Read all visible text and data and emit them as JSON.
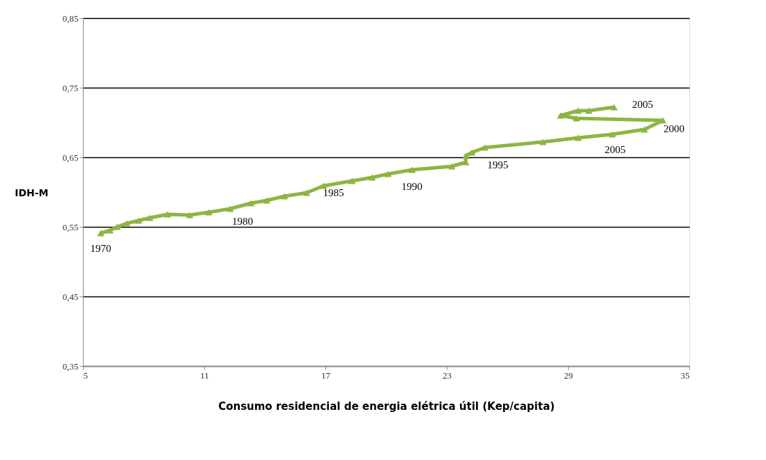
{
  "chart_data": {
    "type": "line",
    "xlabel": "Consumo residencial de energia elétrica útil (Kep/capita)",
    "ylabel": "IDH-M",
    "x": [
      5.88,
      6.34,
      6.69,
      7.16,
      7.75,
      8.31,
      9.19,
      10.28,
      11.22,
      12.28,
      13.31,
      14.09,
      14.97,
      16.06,
      16.91,
      18.31,
      19.31,
      20.09,
      21.28,
      23.25,
      23.94,
      23.94,
      24.25,
      24.88,
      27.75,
      29.5,
      31.19,
      32.78,
      33.69,
      29.41,
      28.63,
      29.5,
      30.03,
      31.28
    ],
    "series": [
      {
        "color": "#8db542",
        "values": [
          0.541,
          0.545,
          0.55,
          0.555,
          0.559,
          0.563,
          0.568,
          0.567,
          0.571,
          0.576,
          0.584,
          0.588,
          0.594,
          0.599,
          0.609,
          0.616,
          0.621,
          0.626,
          0.632,
          0.637,
          0.643,
          0.652,
          0.657,
          0.664,
          0.672,
          0.678,
          0.683,
          0.69,
          0.703,
          0.706,
          0.71,
          0.717,
          0.717,
          0.722
        ]
      }
    ],
    "xlim": [
      5,
      35
    ],
    "xticks": [
      5,
      11,
      17,
      23,
      29,
      35
    ],
    "ylim": [
      0.35,
      0.85
    ],
    "yticks": [
      {
        "value": 0.35,
        "label": "0,35"
      },
      {
        "value": 0.45,
        "label": "0,45"
      },
      {
        "value": 0.55,
        "label": "0,55"
      },
      {
        "value": 0.65,
        "label": "0,65"
      },
      {
        "value": 0.75,
        "label": "0,75"
      },
      {
        "value": 0.85,
        "label": "0,85"
      }
    ],
    "grid": "y",
    "marker": "triangle",
    "line_style": "solid",
    "annotations": [
      {
        "text": "1970",
        "x": 5.88,
        "y": 0.541
      },
      {
        "text": "1980",
        "x": 12.28,
        "y": 0.576
      },
      {
        "text": "1985",
        "x": 16.91,
        "y": 0.609
      },
      {
        "text": "1990",
        "x": 21.28,
        "y": 0.632
      },
      {
        "text": "1995",
        "x": 24.25,
        "y": 0.657
      },
      {
        "text": "2000",
        "x": 33.69,
        "y": 0.703
      },
      {
        "text": "2005",
        "x": 31.19,
        "y": 0.683
      },
      {
        "text": "2005",
        "x": 31.28,
        "y": 0.722
      }
    ]
  }
}
